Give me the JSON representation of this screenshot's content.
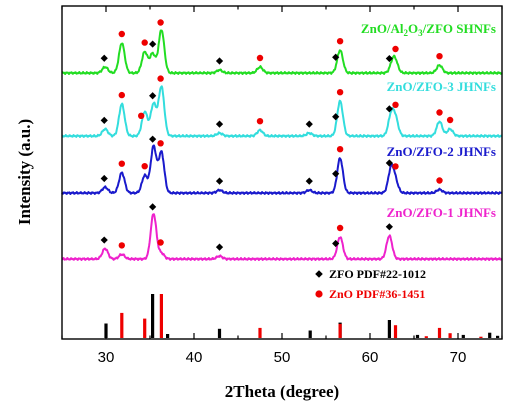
{
  "chart_data": {
    "type": "line",
    "xlabel": "2Theta (degree)",
    "ylabel": "Intensity (a.u.)",
    "xlim": [
      25,
      75
    ],
    "xticks": [
      30,
      40,
      50,
      60,
      70
    ],
    "xtick_labels": [
      "30",
      "40",
      "50",
      "60",
      "70"
    ],
    "y_ticks_shown": false,
    "series": [
      {
        "name": "ZnO/Al2O3/ZFO SHNFs",
        "label_parts": [
          "ZnO/Al",
          "2",
          "O",
          "3",
          "/ZFO SHNFs"
        ],
        "color": "#22dd22",
        "peaks": [
          {
            "x": 29.9,
            "h": 0.1,
            "phase": "ZFO"
          },
          {
            "x": 31.8,
            "h": 0.5,
            "phase": "ZnO"
          },
          {
            "x": 34.4,
            "h": 0.35,
            "phase": "ZnO"
          },
          {
            "x": 35.3,
            "h": 0.32,
            "phase": "ZFO"
          },
          {
            "x": 36.3,
            "h": 0.72,
            "phase": "ZnO"
          },
          {
            "x": 42.9,
            "h": 0.05,
            "phase": "ZFO"
          },
          {
            "x": 47.5,
            "h": 0.1,
            "phase": "ZnO"
          },
          {
            "x": 56.6,
            "h": 0.38,
            "phase": "ZnO"
          },
          {
            "x": 62.6,
            "h": 0.17,
            "phase": "ZFO"
          },
          {
            "x": 62.9,
            "h": 0.14,
            "phase": "ZnO"
          },
          {
            "x": 67.9,
            "h": 0.13,
            "phase": "ZnO"
          }
        ],
        "markers": [
          {
            "x": 29.8,
            "phase": "ZFO"
          },
          {
            "x": 31.8,
            "phase": "ZnO"
          },
          {
            "x": 34.4,
            "phase": "ZnO"
          },
          {
            "x": 35.3,
            "phase": "ZFO"
          },
          {
            "x": 36.2,
            "phase": "ZnO"
          },
          {
            "x": 42.9,
            "phase": "ZFO"
          },
          {
            "x": 47.5,
            "phase": "ZnO"
          },
          {
            "x": 56.1,
            "phase": "ZFO"
          },
          {
            "x": 56.6,
            "phase": "ZnO"
          },
          {
            "x": 62.2,
            "phase": "ZFO"
          },
          {
            "x": 62.9,
            "phase": "ZnO"
          },
          {
            "x": 67.9,
            "phase": "ZnO"
          }
        ]
      },
      {
        "name": "ZnO/ZFO-3 JHNFs",
        "color": "#33dddd",
        "peaks": [
          {
            "x": 29.9,
            "h": 0.12,
            "phase": "ZFO"
          },
          {
            "x": 31.8,
            "h": 0.55,
            "phase": "ZnO"
          },
          {
            "x": 34.4,
            "h": 0.42,
            "phase": "ZnO"
          },
          {
            "x": 35.4,
            "h": 0.55,
            "phase": "ZFO"
          },
          {
            "x": 36.3,
            "h": 0.85,
            "phase": "ZnO"
          },
          {
            "x": 42.9,
            "h": 0.05,
            "phase": "ZFO"
          },
          {
            "x": 47.5,
            "h": 0.1,
            "phase": "ZnO"
          },
          {
            "x": 53.1,
            "h": 0.05,
            "phase": "ZFO"
          },
          {
            "x": 56.6,
            "h": 0.6,
            "phase": "ZnO"
          },
          {
            "x": 62.4,
            "h": 0.35,
            "phase": "ZFO"
          },
          {
            "x": 62.9,
            "h": 0.28,
            "phase": "ZnO"
          },
          {
            "x": 67.9,
            "h": 0.25,
            "phase": "ZnO"
          },
          {
            "x": 69.1,
            "h": 0.12,
            "phase": "ZnO"
          }
        ],
        "markers": [
          {
            "x": 29.8,
            "phase": "ZFO"
          },
          {
            "x": 31.8,
            "phase": "ZnO"
          },
          {
            "x": 34.0,
            "phase": "ZnO"
          },
          {
            "x": 35.3,
            "phase": "ZFO"
          },
          {
            "x": 36.2,
            "phase": "ZnO"
          },
          {
            "x": 42.9,
            "phase": "ZFO"
          },
          {
            "x": 47.5,
            "phase": "ZnO"
          },
          {
            "x": 53.1,
            "phase": "ZFO"
          },
          {
            "x": 56.1,
            "phase": "ZFO"
          },
          {
            "x": 56.6,
            "phase": "ZnO"
          },
          {
            "x": 62.2,
            "phase": "ZFO"
          },
          {
            "x": 62.9,
            "phase": "ZnO"
          },
          {
            "x": 67.9,
            "phase": "ZnO"
          },
          {
            "x": 69.1,
            "phase": "ZnO"
          }
        ]
      },
      {
        "name": "ZnO/ZFO-2 JHNFs",
        "color": "#1a1acc",
        "peaks": [
          {
            "x": 29.9,
            "h": 0.1,
            "phase": "ZFO"
          },
          {
            "x": 31.8,
            "h": 0.35,
            "phase": "ZnO"
          },
          {
            "x": 34.4,
            "h": 0.3,
            "phase": "ZnO"
          },
          {
            "x": 35.4,
            "h": 0.8,
            "phase": "ZFO"
          },
          {
            "x": 36.3,
            "h": 0.7,
            "phase": "ZnO"
          },
          {
            "x": 42.9,
            "h": 0.05,
            "phase": "ZFO"
          },
          {
            "x": 53.1,
            "h": 0.05,
            "phase": "ZFO"
          },
          {
            "x": 56.6,
            "h": 0.6,
            "phase": "ZnO"
          },
          {
            "x": 62.4,
            "h": 0.42,
            "phase": "ZFO"
          },
          {
            "x": 62.9,
            "h": 0.18,
            "phase": "ZnO"
          },
          {
            "x": 67.9,
            "h": 0.06,
            "phase": "ZnO"
          }
        ],
        "markers": [
          {
            "x": 29.8,
            "phase": "ZFO"
          },
          {
            "x": 31.8,
            "phase": "ZnO"
          },
          {
            "x": 34.4,
            "phase": "ZnO"
          },
          {
            "x": 35.3,
            "phase": "ZFO"
          },
          {
            "x": 36.2,
            "phase": "ZnO"
          },
          {
            "x": 42.9,
            "phase": "ZFO"
          },
          {
            "x": 53.1,
            "phase": "ZFO"
          },
          {
            "x": 56.1,
            "phase": "ZFO"
          },
          {
            "x": 56.6,
            "phase": "ZnO"
          },
          {
            "x": 62.2,
            "phase": "ZFO"
          },
          {
            "x": 62.9,
            "phase": "ZnO"
          },
          {
            "x": 67.9,
            "phase": "ZnO"
          }
        ]
      },
      {
        "name": "ZnO/ZFO-1 JHNFs",
        "color": "#ee22cc",
        "peaks": [
          {
            "x": 29.9,
            "h": 0.18,
            "phase": "ZFO"
          },
          {
            "x": 31.8,
            "h": 0.08,
            "phase": "ZnO"
          },
          {
            "x": 35.4,
            "h": 0.78,
            "phase": "ZFO"
          },
          {
            "x": 36.3,
            "h": 0.1,
            "phase": "ZnO"
          },
          {
            "x": 42.9,
            "h": 0.05,
            "phase": "ZFO"
          },
          {
            "x": 56.6,
            "h": 0.38,
            "phase": "ZnO"
          },
          {
            "x": 62.2,
            "h": 0.4,
            "phase": "ZFO"
          }
        ],
        "markers": [
          {
            "x": 29.8,
            "phase": "ZFO"
          },
          {
            "x": 31.8,
            "phase": "ZnO"
          },
          {
            "x": 35.3,
            "phase": "ZFO"
          },
          {
            "x": 36.2,
            "phase": "ZnO"
          },
          {
            "x": 42.9,
            "phase": "ZFO"
          },
          {
            "x": 56.1,
            "phase": "ZFO"
          },
          {
            "x": 56.6,
            "phase": "ZnO"
          },
          {
            "x": 62.2,
            "phase": "ZFO"
          }
        ]
      }
    ],
    "reference_patterns": [
      {
        "name": "ZFO PDF#22-1012",
        "color": "#000000",
        "marker": "diamond",
        "sticks": [
          {
            "x": 30.0,
            "h": 0.33
          },
          {
            "x": 35.3,
            "h": 1.0
          },
          {
            "x": 37.0,
            "h": 0.09
          },
          {
            "x": 42.9,
            "h": 0.21
          },
          {
            "x": 53.2,
            "h": 0.17
          },
          {
            "x": 56.6,
            "h": 0.35
          },
          {
            "x": 62.2,
            "h": 0.41
          },
          {
            "x": 65.4,
            "h": 0.07
          },
          {
            "x": 70.6,
            "h": 0.07
          },
          {
            "x": 73.6,
            "h": 0.12
          },
          {
            "x": 74.5,
            "h": 0.05
          }
        ]
      },
      {
        "name": "ZnO PDF#36-1451",
        "color": "#ee0000",
        "marker": "circle",
        "sticks": [
          {
            "x": 31.8,
            "h": 0.57
          },
          {
            "x": 34.4,
            "h": 0.44
          },
          {
            "x": 36.3,
            "h": 1.0
          },
          {
            "x": 47.5,
            "h": 0.23
          },
          {
            "x": 56.6,
            "h": 0.32
          },
          {
            "x": 62.9,
            "h": 0.29
          },
          {
            "x": 66.4,
            "h": 0.04
          },
          {
            "x": 67.9,
            "h": 0.23
          },
          {
            "x": 69.1,
            "h": 0.11
          },
          {
            "x": 72.6,
            "h": 0.03
          }
        ]
      }
    ],
    "legend_position": "lower-right"
  }
}
